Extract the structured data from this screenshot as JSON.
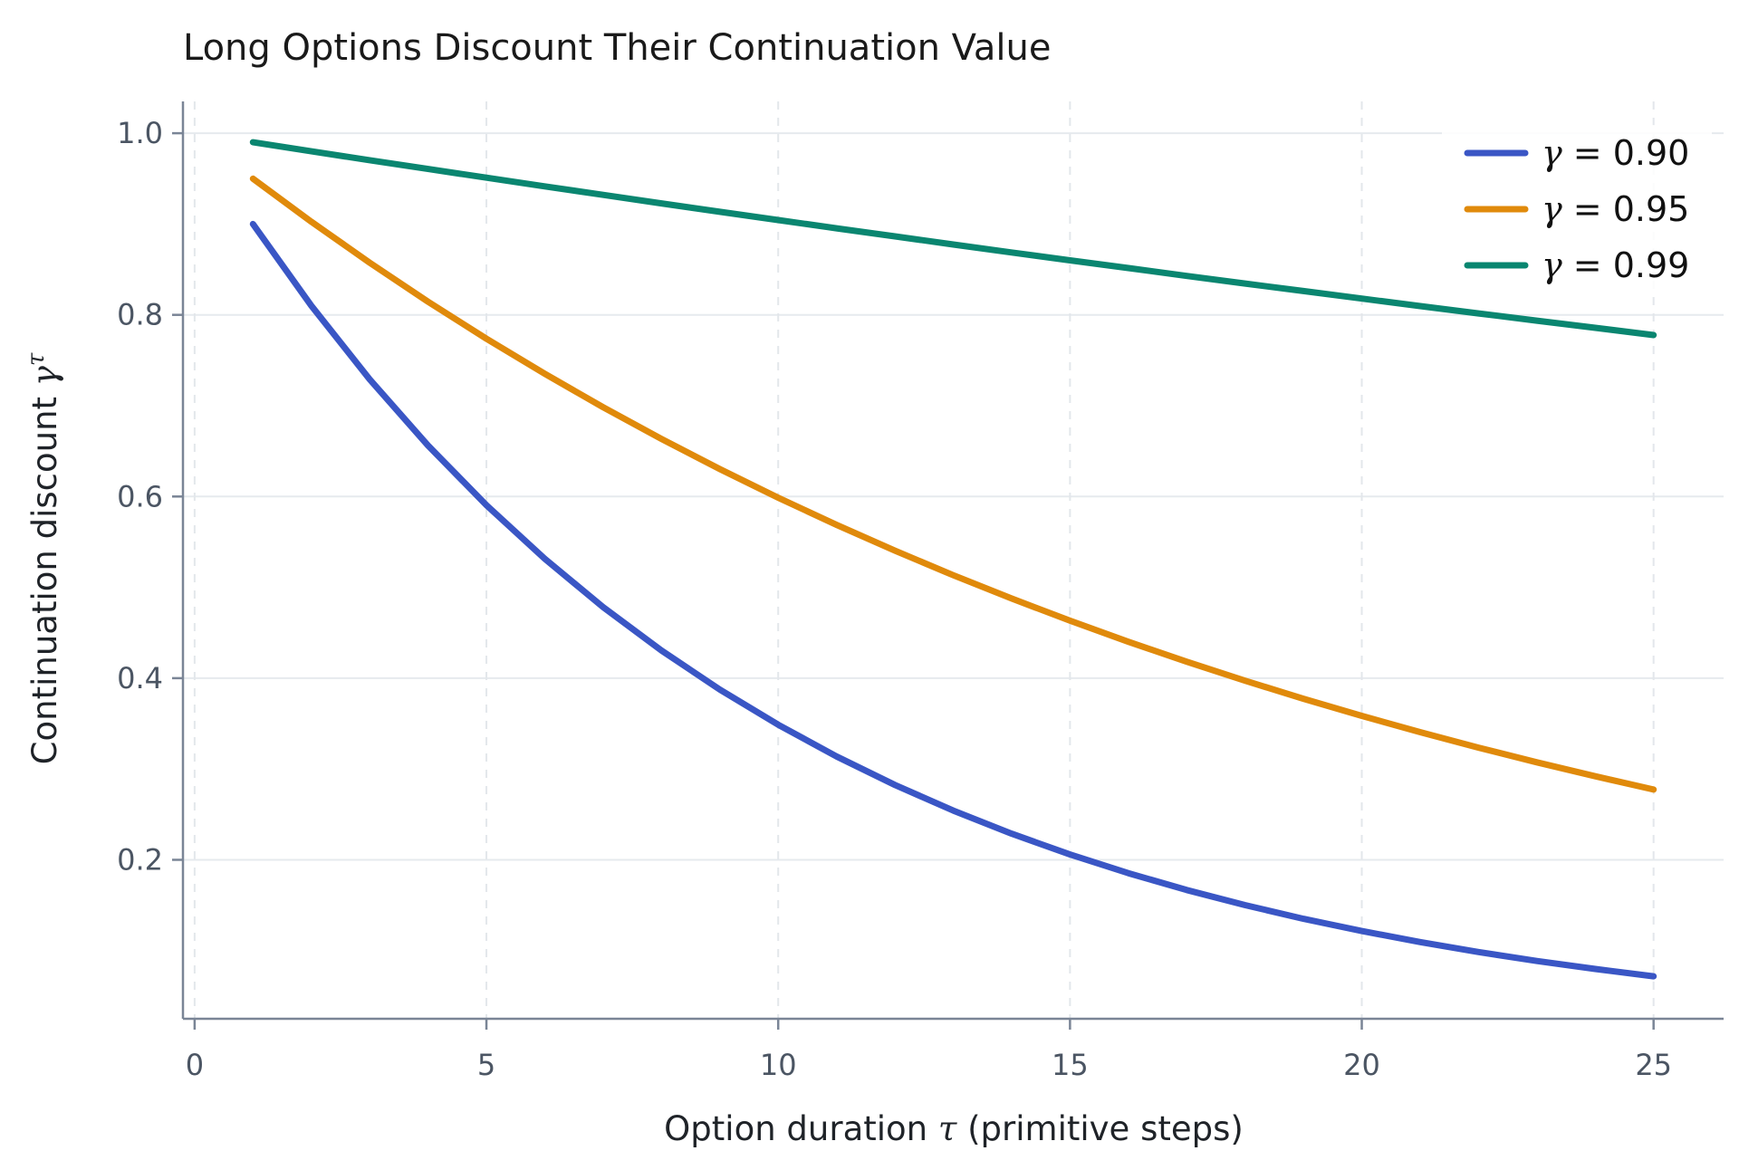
{
  "chart_data": {
    "type": "line",
    "title": "Long Options Discount Their Continuation Value",
    "xlabel": "Option duration τ (primitive steps)",
    "ylabel": "Continuation discount γ^τ",
    "xlim": [
      -0.2,
      26.2
    ],
    "ylim": [
      0.025,
      1.035
    ],
    "xticks": [
      0,
      5,
      10,
      15,
      20,
      25
    ],
    "yticks": [
      0.2,
      0.4,
      0.6,
      0.8,
      1.0
    ],
    "xtick_labels": [
      "0",
      "5",
      "10",
      "15",
      "20",
      "25"
    ],
    "ytick_labels": [
      "0.2",
      "0.4",
      "0.6",
      "0.8",
      "1.0"
    ],
    "grid": true,
    "legend_position": "top-right",
    "x": [
      1,
      2,
      3,
      4,
      5,
      6,
      7,
      8,
      9,
      10,
      11,
      12,
      13,
      14,
      15,
      16,
      17,
      18,
      19,
      20,
      21,
      22,
      23,
      24,
      25
    ],
    "series": [
      {
        "name": "γ = 0.90",
        "gamma_symbol": "γ",
        "gamma_value": "= 0.90",
        "color": "#3a56c5",
        "values": [
          0.9,
          0.81,
          0.729,
          0.6561,
          0.5905,
          0.5314,
          0.4783,
          0.4305,
          0.3874,
          0.3487,
          0.3138,
          0.2824,
          0.2542,
          0.2288,
          0.2059,
          0.1853,
          0.1668,
          0.1501,
          0.1351,
          0.1216,
          0.1094,
          0.0985,
          0.0886,
          0.0798,
          0.0718
        ]
      },
      {
        "name": "γ = 0.95",
        "gamma_symbol": "γ",
        "gamma_value": "= 0.95",
        "color": "#e08a0b",
        "values": [
          0.95,
          0.9025,
          0.8574,
          0.8145,
          0.7738,
          0.7351,
          0.6983,
          0.6634,
          0.6302,
          0.5987,
          0.5688,
          0.5404,
          0.5133,
          0.4877,
          0.4633,
          0.4401,
          0.4181,
          0.3972,
          0.3774,
          0.3585,
          0.3406,
          0.3235,
          0.3074,
          0.292,
          0.2774
        ]
      },
      {
        "name": "γ = 0.99",
        "gamma_symbol": "γ",
        "gamma_value": "= 0.99",
        "color": "#0a8670",
        "values": [
          0.99,
          0.9801,
          0.9703,
          0.9606,
          0.951,
          0.9415,
          0.9321,
          0.9227,
          0.9135,
          0.9044,
          0.8953,
          0.8864,
          0.8775,
          0.8687,
          0.86,
          0.8515,
          0.8429,
          0.8345,
          0.8262,
          0.8179,
          0.8097,
          0.8016,
          0.7936,
          0.7857,
          0.7778
        ]
      }
    ]
  }
}
